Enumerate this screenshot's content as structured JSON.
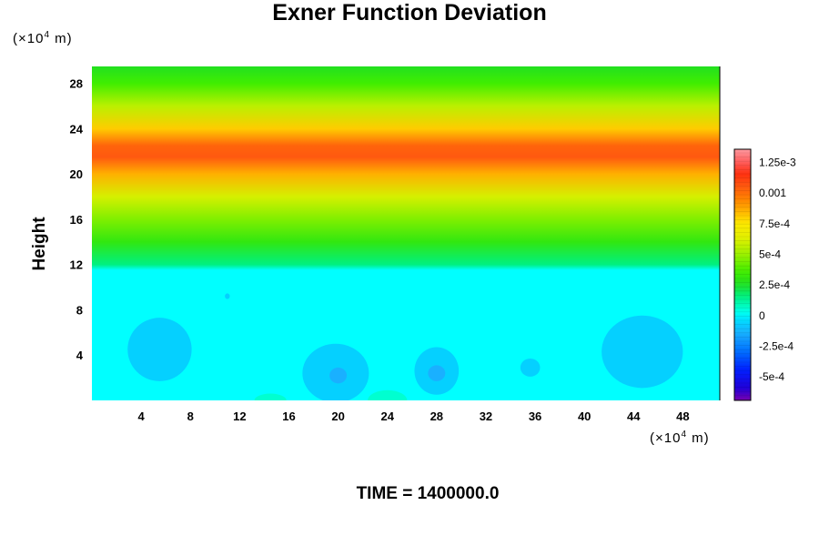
{
  "chart_data": {
    "type": "heatmap",
    "title": "Exner Function Deviation",
    "ylabel": "Height",
    "x_unit": "(×10⁴ m)",
    "y_unit": "(×10⁴ m)",
    "x_ticks": [
      4,
      8,
      12,
      16,
      20,
      24,
      28,
      32,
      36,
      40,
      44,
      48
    ],
    "y_ticks": [
      4,
      8,
      12,
      16,
      20,
      24,
      28
    ],
    "xlim": [
      0,
      51
    ],
    "ylim": [
      0,
      29.5
    ],
    "colorbar": {
      "range": [
        -0.0007,
        0.00135
      ],
      "ticks": [
        {
          "value": 0.00125,
          "label": "1.25e-3"
        },
        {
          "value": 0.001,
          "label": "0.001"
        },
        {
          "value": 0.00075,
          "label": "7.5e-4"
        },
        {
          "value": 0.0005,
          "label": "5e-4"
        },
        {
          "value": 0.00025,
          "label": "2.5e-4"
        },
        {
          "value": 0,
          "label": "0"
        },
        {
          "value": -0.00025,
          "label": "-2.5e-4"
        },
        {
          "value": -0.0005,
          "label": "-5e-4"
        }
      ]
    },
    "vertical_profile": [
      {
        "height": 0,
        "value": 0
      },
      {
        "height": 11.5,
        "value": 0.0
      },
      {
        "height": 12,
        "value": 0.00015
      },
      {
        "height": 14,
        "value": 0.0003
      },
      {
        "height": 16,
        "value": 0.00045
      },
      {
        "height": 18,
        "value": 0.0006
      },
      {
        "height": 20,
        "value": 0.00085
      },
      {
        "height": 21.5,
        "value": 0.00105
      },
      {
        "height": 22.5,
        "value": 0.00102
      },
      {
        "height": 24,
        "value": 0.0008
      },
      {
        "height": 26,
        "value": 0.00055
      },
      {
        "height": 28,
        "value": 0.00035
      },
      {
        "height": 29.5,
        "value": 0.00025
      }
    ],
    "anomalies": [
      {
        "x": 5.5,
        "y": 4.5,
        "rx": 2.6,
        "ry": 2.8,
        "value": -7e-05
      },
      {
        "x": 44.7,
        "y": 4.3,
        "rx": 3.3,
        "ry": 3.2,
        "value": -7e-05
      },
      {
        "x": 19.8,
        "y": 2.4,
        "rx": 2.7,
        "ry": 2.6,
        "value": -7e-05
      },
      {
        "x": 20.0,
        "y": 2.2,
        "rx": 0.7,
        "ry": 0.7,
        "value": -0.00015
      },
      {
        "x": 28.0,
        "y": 2.6,
        "rx": 1.8,
        "ry": 2.1,
        "value": -7e-05
      },
      {
        "x": 28.0,
        "y": 2.4,
        "rx": 0.7,
        "ry": 0.7,
        "value": -0.00015
      },
      {
        "x": 35.6,
        "y": 2.9,
        "rx": 0.8,
        "ry": 0.8,
        "value": -7e-05
      },
      {
        "x": 24.0,
        "y": 0.0,
        "rx": 1.6,
        "ry": 0.9,
        "value": 5e-05
      },
      {
        "x": 14.5,
        "y": 0.0,
        "rx": 1.3,
        "ry": 0.6,
        "value": 5e-05
      },
      {
        "x": 11.0,
        "y": 9.2,
        "rx": 0.2,
        "ry": 0.25,
        "value": -7e-05
      }
    ]
  },
  "footer": {
    "time_label": "TIME = 1400000.0"
  }
}
